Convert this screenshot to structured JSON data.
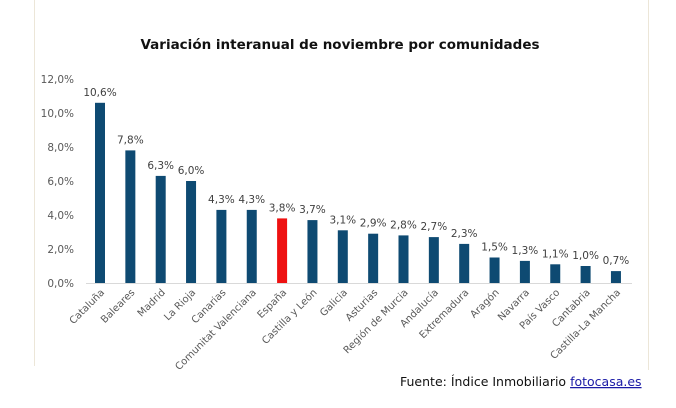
{
  "chart_data": {
    "type": "bar",
    "title": "Variación interanual de noviembre por comunidades",
    "xlabel": "",
    "ylabel": "",
    "ylim": [
      0,
      12
    ],
    "yticks": [
      "0,0%",
      "2,0%",
      "4,0%",
      "6,0%",
      "8,0%",
      "10,0%",
      "12,0%"
    ],
    "ytick_values": [
      0,
      2,
      4,
      6,
      8,
      10,
      12
    ],
    "grid": false,
    "categories": [
      "Cataluña",
      "Baleares",
      "Madrid",
      "La Rioja",
      "Canarias",
      "Comunitat Valenciana",
      "España",
      "Castilla y León",
      "Galicia",
      "Asturias",
      "Región de Murcia",
      "Andalucía",
      "Extremadura",
      "Aragón",
      "Navarra",
      "País Vasco",
      "Cantabria",
      "Castilla-La Mancha"
    ],
    "values": [
      10.6,
      7.8,
      6.3,
      6.0,
      4.3,
      4.3,
      3.8,
      3.7,
      3.1,
      2.9,
      2.8,
      2.7,
      2.3,
      1.5,
      1.3,
      1.1,
      1.0,
      0.7
    ],
    "data_labels": [
      "10,6%",
      "7,8%",
      "6,3%",
      "6,0%",
      "4,3%",
      "4,3%",
      "3,8%",
      "3,7%",
      "3,1%",
      "2,9%",
      "2,8%",
      "2,7%",
      "2,3%",
      "1,5%",
      "1,3%",
      "1,1%",
      "1,0%",
      "0,7%"
    ],
    "colors": {
      "default": "#0e4a72",
      "highlight": "#ee1111"
    },
    "highlight_category": "España"
  },
  "source": {
    "prefix": "Fuente: Índice Inmobiliario ",
    "link": "fotocasa.es"
  }
}
